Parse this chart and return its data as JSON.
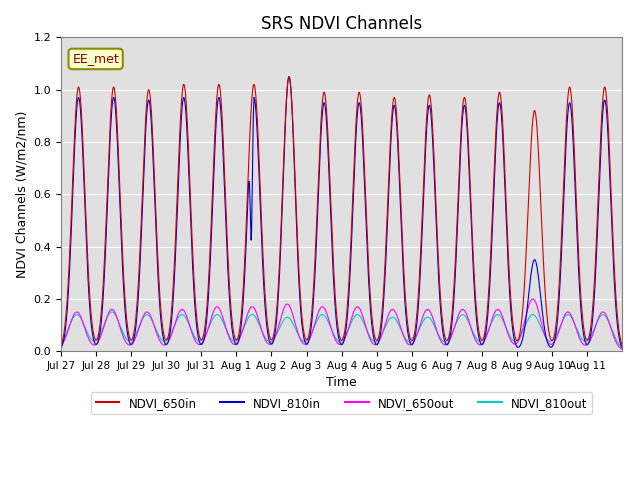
{
  "title": "SRS NDVI Channels",
  "ylabel": "NDVI Channels (W/m2/nm)",
  "xlabel": "Time",
  "annotation": "EE_met",
  "ylim": [
    0.0,
    1.2
  ],
  "colors": {
    "NDVI_650in": "#cc0000",
    "NDVI_810in": "#0000cc",
    "NDVI_650out": "#ff00ff",
    "NDVI_810out": "#00cccc"
  },
  "background_color": "#e0e0e0",
  "xtick_labels": [
    "Jul 27",
    "Jul 28",
    "Jul 29",
    "Jul 30",
    "Jul 31",
    "Aug 1",
    "Aug 2",
    "Aug 3",
    "Aug 4",
    "Aug 5",
    "Aug 6",
    "Aug 7",
    "Aug 8",
    "Aug 9",
    "Aug 10",
    "Aug 11"
  ],
  "ytick_labels": [
    "0.0",
    "0.2",
    "0.4",
    "0.6",
    "0.8",
    "1.0",
    "1.2"
  ],
  "ytick_vals": [
    0.0,
    0.2,
    0.4,
    0.6,
    0.8,
    1.0,
    1.2
  ],
  "legend_labels": [
    "NDVI_650in",
    "NDVI_810in",
    "NDVI_650out",
    "NDVI_810out"
  ],
  "n_days": 16,
  "peak_vals_650in": [
    1.01,
    1.01,
    1.0,
    1.02,
    1.02,
    1.02,
    1.05,
    0.99,
    0.99,
    0.97,
    0.98,
    0.97,
    0.99,
    0.92,
    1.01,
    1.01
  ],
  "peak_vals_810in": [
    0.97,
    0.97,
    0.96,
    0.97,
    0.97,
    0.97,
    1.05,
    0.95,
    0.95,
    0.94,
    0.94,
    0.94,
    0.95,
    0.35,
    0.95,
    0.96
  ],
  "peak_vals_650out": [
    0.15,
    0.16,
    0.15,
    0.16,
    0.17,
    0.17,
    0.18,
    0.17,
    0.17,
    0.16,
    0.16,
    0.16,
    0.16,
    0.2,
    0.15,
    0.15
  ],
  "peak_vals_810out": [
    0.14,
    0.15,
    0.14,
    0.14,
    0.14,
    0.14,
    0.13,
    0.14,
    0.14,
    0.13,
    0.13,
    0.14,
    0.14,
    0.14,
    0.14,
    0.14
  ]
}
